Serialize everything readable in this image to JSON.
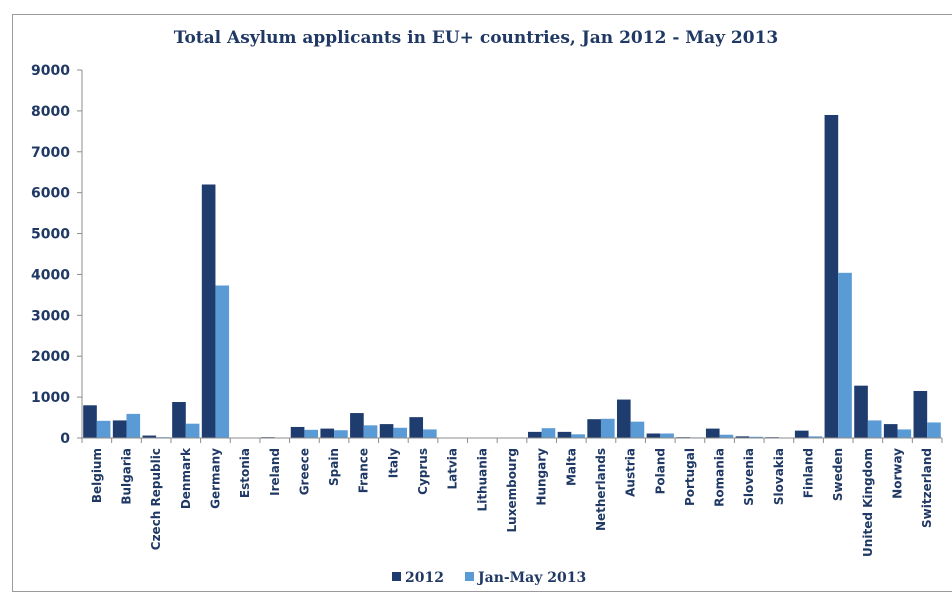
{
  "chart_data": {
    "type": "bar",
    "title": "Total Asylum applicants in EU+ countries, Jan 2012 - May 2013",
    "xlabel": "",
    "ylabel": "",
    "ylim": [
      0,
      9000
    ],
    "yticks": [
      0,
      1000,
      2000,
      3000,
      4000,
      5000,
      6000,
      7000,
      8000,
      9000
    ],
    "grid": false,
    "legend_position": "bottom",
    "categories": [
      "Belgium",
      "Bulgaria",
      "Czech Republic",
      "Denmark",
      "Germany",
      "Estonia",
      "Ireland",
      "Greece",
      "Spain",
      "France",
      "Italy",
      "Cyprus",
      "Latvia",
      "Lithuania",
      "Luxembourg",
      "Hungary",
      "Malta",
      "Netherlands",
      "Austria",
      "Poland",
      "Portugal",
      "Romania",
      "Slovenia",
      "Slovakia",
      "Finland",
      "Sweden",
      "United Kingdom",
      "Norway",
      "Switzerland"
    ],
    "series": [
      {
        "name": "2012",
        "color": "#1f3c6e",
        "values": [
          800,
          430,
          60,
          880,
          6200,
          5,
          20,
          270,
          230,
          610,
          340,
          510,
          5,
          5,
          10,
          150,
          150,
          460,
          940,
          110,
          20,
          230,
          40,
          20,
          180,
          7900,
          1280,
          340,
          1150
        ]
      },
      {
        "name": "Jan-May 2013",
        "color": "#5b9bd5",
        "values": [
          420,
          590,
          20,
          350,
          3730,
          5,
          10,
          200,
          190,
          310,
          250,
          210,
          5,
          5,
          5,
          240,
          90,
          470,
          400,
          110,
          15,
          80,
          30,
          10,
          40,
          4040,
          430,
          210,
          380
        ]
      }
    ]
  }
}
